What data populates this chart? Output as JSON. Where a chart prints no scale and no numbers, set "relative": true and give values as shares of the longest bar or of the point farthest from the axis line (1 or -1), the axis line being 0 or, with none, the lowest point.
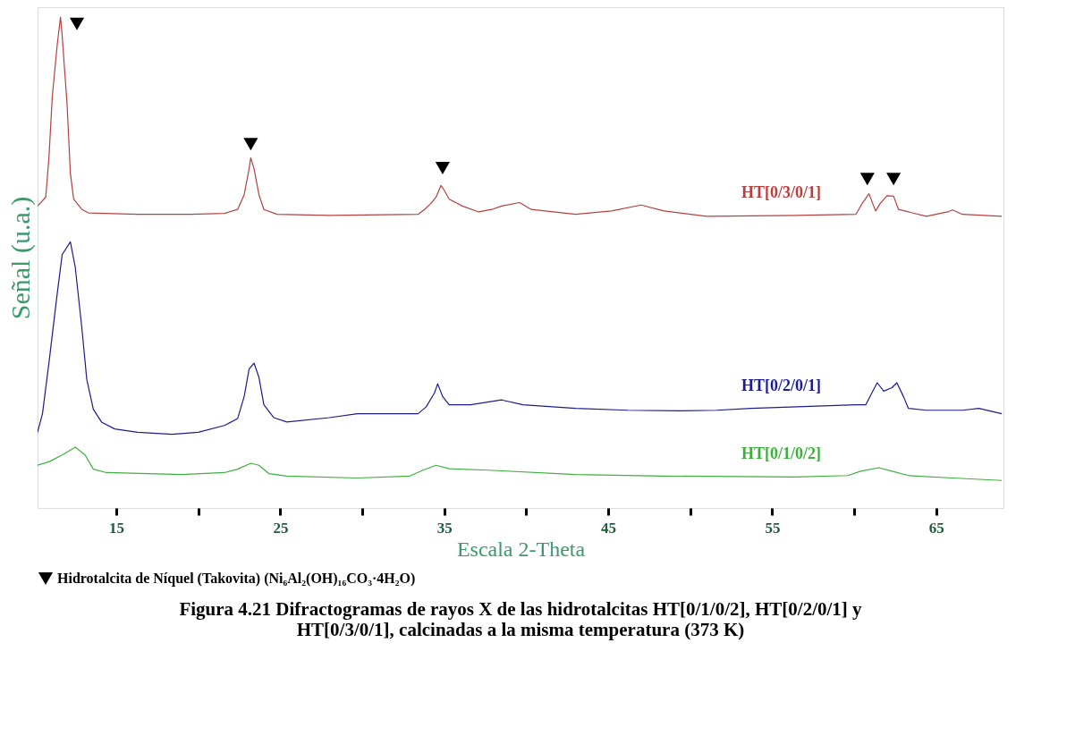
{
  "chart_data": {
    "type": "line",
    "title": "Figura 4.21 Difractogramas de rayos X de las hidrotalcitas HT[0/1/0/2], HT[0/2/0/1] y HT[0/3/0/1],  calcinadas a la misma temperatura (373 K)",
    "xlabel": "Escala 2-Theta",
    "ylabel": "Señal (u.a.)",
    "relative": true,
    "grid": false,
    "legend": "bottom",
    "xlim": [
      10.2,
      69.1
    ],
    "xticks": [
      15,
      {
        "value": 20,
        "label": null
      },
      25,
      {
        "value": 30,
        "label": null
      },
      35,
      {
        "value": 40,
        "label": null
      },
      45,
      {
        "value": 50,
        "label": null
      },
      55,
      {
        "value": 60,
        "label": null
      },
      65
    ],
    "series": [
      {
        "name": "HT[0/3/0/1]",
        "color": "#b5413f",
        "x": [
          10.2,
          10.7,
          10.9,
          11.1,
          11.4,
          11.6,
          11.7,
          12.0,
          12.2,
          12.4,
          12.9,
          13.3,
          16.3,
          19.5,
          21.6,
          22.4,
          22.8,
          23.1,
          23.2,
          23.4,
          23.7,
          24.0,
          24.8,
          28.0,
          33.4,
          33.8,
          34.2,
          34.5,
          34.8,
          35.0,
          35.3,
          36.1,
          37.1,
          37.9,
          38.5,
          39.6,
          40.3,
          43.0,
          45.2,
          47.0,
          48.4,
          51.0,
          56.4,
          60.1,
          60.5,
          60.9,
          61.3,
          61.6,
          62.0,
          62.4,
          62.7,
          64.4,
          65.7,
          66.0,
          66.6,
          69.0
        ],
        "values": [
          0.615,
          0.633,
          0.717,
          0.839,
          0.944,
          1,
          0.962,
          0.822,
          0.682,
          0.629,
          0.608,
          0.601,
          0.598,
          0.598,
          0.6,
          0.608,
          0.638,
          0.691,
          0.713,
          0.691,
          0.638,
          0.608,
          0.598,
          0.596,
          0.598,
          0.608,
          0.621,
          0.633,
          0.657,
          0.647,
          0.629,
          0.615,
          0.603,
          0.608,
          0.615,
          0.622,
          0.608,
          0.598,
          0.605,
          0.617,
          0.605,
          0.594,
          0.596,
          0.598,
          0.621,
          0.64,
          0.605,
          0.621,
          0.636,
          0.635,
          0.608,
          0.594,
          0.603,
          0.607,
          0.598,
          0.594
        ]
      },
      {
        "name": "HT[0/2/0/1]",
        "color": "#1c1c8c",
        "x": [
          10.2,
          10.5,
          10.9,
          11.4,
          11.7,
          12.2,
          12.5,
          12.9,
          13.2,
          13.6,
          14.1,
          14.9,
          16.3,
          18.4,
          20.0,
          21.6,
          22.4,
          22.8,
          23.1,
          23.4,
          23.7,
          24.0,
          24.6,
          25.4,
          28.0,
          29.7,
          33.4,
          33.9,
          34.4,
          34.6,
          34.9,
          35.3,
          36.6,
          38.5,
          39.8,
          43.0,
          46.2,
          49.4,
          51.6,
          53.7,
          60.1,
          60.7,
          61.1,
          61.4,
          61.8,
          62.3,
          62.6,
          63.0,
          63.3,
          64.4,
          66.6,
          67.6,
          69.0
        ],
        "values": [
          0.154,
          0.192,
          0.297,
          0.437,
          0.516,
          0.542,
          0.49,
          0.367,
          0.262,
          0.201,
          0.175,
          0.161,
          0.154,
          0.15,
          0.154,
          0.168,
          0.182,
          0.227,
          0.283,
          0.295,
          0.266,
          0.21,
          0.184,
          0.175,
          0.184,
          0.192,
          0.192,
          0.206,
          0.234,
          0.253,
          0.227,
          0.21,
          0.21,
          0.22,
          0.21,
          0.203,
          0.199,
          0.198,
          0.199,
          0.203,
          0.21,
          0.21,
          0.236,
          0.255,
          0.238,
          0.245,
          0.255,
          0.227,
          0.203,
          0.199,
          0.199,
          0.203,
          0.192
        ]
      },
      {
        "name": "HT[0/1/0/2]",
        "color": "#3fae3f",
        "x": [
          10.2,
          10.9,
          11.7,
          12.5,
          13.1,
          13.6,
          14.4,
          19.0,
          21.6,
          22.4,
          23.2,
          23.7,
          24.3,
          25.4,
          29.7,
          32.9,
          33.7,
          34.5,
          35.3,
          37.7,
          43.0,
          48.4,
          56.4,
          59.6,
          60.4,
          61.5,
          62.3,
          63.3,
          66.0,
          69.0
        ],
        "values": [
          0.087,
          0.094,
          0.108,
          0.124,
          0.108,
          0.079,
          0.072,
          0.068,
          0.072,
          0.079,
          0.091,
          0.087,
          0.07,
          0.065,
          0.061,
          0.065,
          0.077,
          0.087,
          0.08,
          0.077,
          0.068,
          0.065,
          0.063,
          0.066,
          0.075,
          0.082,
          0.075,
          0.066,
          0.061,
          0.056
        ]
      },
      {
        "name": "Hidrotalcita de Níquel (Takovita) (Ni₆Al₂(OH)₁₆CO₃·4H₂O)",
        "type": "scatter",
        "marker": "triangle",
        "color": "#000000",
        "x": [
          12.6,
          23.2,
          34.9,
          60.8,
          62.4
        ],
        "values": [
          0.986,
          0.741,
          0.692,
          0.67,
          0.67
        ]
      }
    ]
  }
}
